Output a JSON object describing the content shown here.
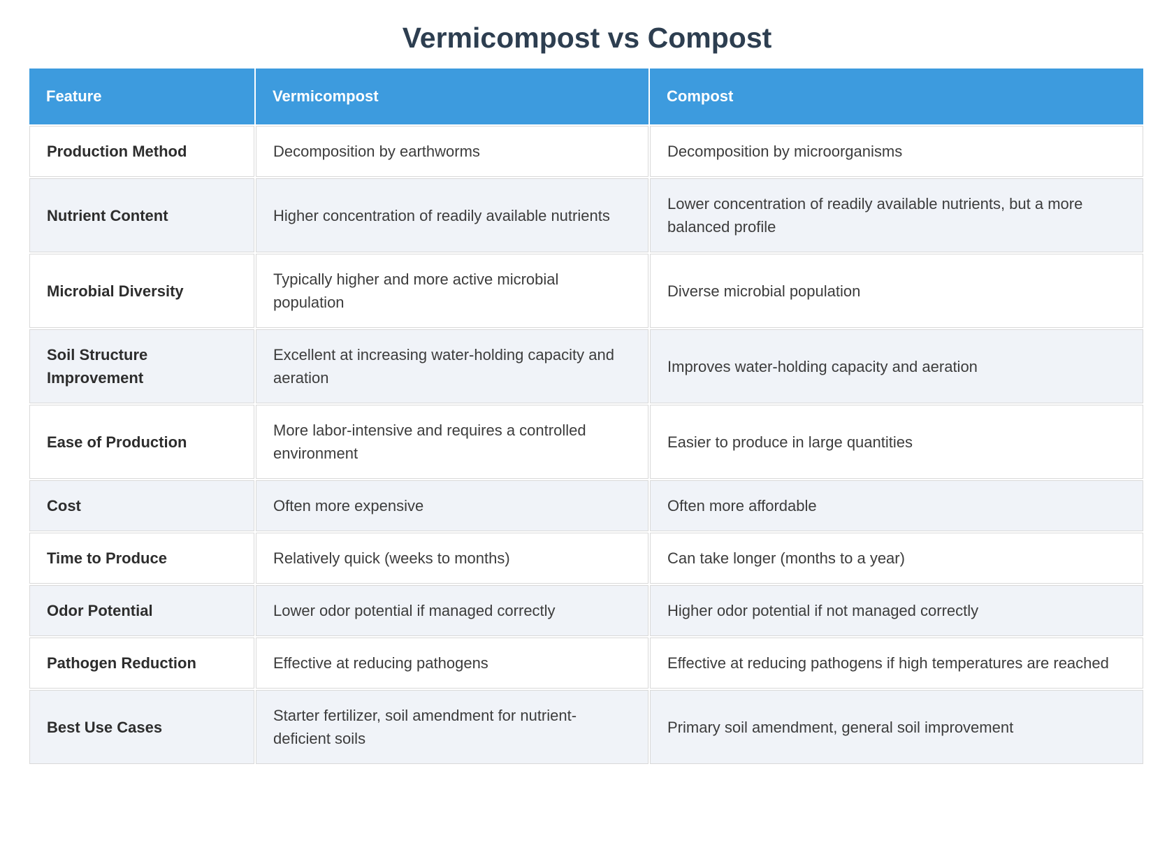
{
  "page": {
    "title": "Vermicompost vs Compost"
  },
  "colors": {
    "header_bg": "#3d9bde",
    "header_text": "#ffffff",
    "title_text": "#2d3e50",
    "row_bg": "#ffffff",
    "row_alt_bg": "#f0f3f8",
    "cell_border": "#d9d9d9",
    "body_text": "#3c3c3c",
    "feature_text": "#2d2d2d"
  },
  "table": {
    "columns": [
      {
        "label": "Feature"
      },
      {
        "label": "Vermicompost"
      },
      {
        "label": "Compost"
      }
    ],
    "rows": [
      {
        "feature": "Production Method",
        "vermicompost": "Decomposition by earthworms",
        "compost": "Decomposition by microorganisms"
      },
      {
        "feature": "Nutrient Content",
        "vermicompost": "Higher concentration of readily available nutrients",
        "compost": "Lower concentration of readily available nutrients, but a more balanced profile"
      },
      {
        "feature": "Microbial Diversity",
        "vermicompost": "Typically higher and more active microbial population",
        "compost": "Diverse microbial population"
      },
      {
        "feature": "Soil Structure Improvement",
        "vermicompost": "Excellent at increasing water-holding capacity and aeration",
        "compost": "Improves water-holding capacity and aeration"
      },
      {
        "feature": "Ease of Production",
        "vermicompost": "More labor-intensive and requires a controlled environment",
        "compost": "Easier to produce in large quantities"
      },
      {
        "feature": "Cost",
        "vermicompost": "Often more expensive",
        "compost": "Often more affordable"
      },
      {
        "feature": "Time to Produce",
        "vermicompost": "Relatively quick (weeks to months)",
        "compost": "Can take longer (months to a year)"
      },
      {
        "feature": "Odor Potential",
        "vermicompost": "Lower odor potential if managed correctly",
        "compost": "Higher odor potential if not managed correctly"
      },
      {
        "feature": "Pathogen Reduction",
        "vermicompost": "Effective at reducing pathogens",
        "compost": "Effective at reducing pathogens if high temperatures are reached"
      },
      {
        "feature": "Best Use Cases",
        "vermicompost": "Starter fertilizer, soil amendment for nutrient-deficient soils",
        "compost": "Primary soil amendment, general soil improvement"
      }
    ]
  },
  "chart_data": {
    "type": "table",
    "title": "Vermicompost vs Compost",
    "columns": [
      "Feature",
      "Vermicompost",
      "Compost"
    ],
    "rows": [
      [
        "Production Method",
        "Decomposition by earthworms",
        "Decomposition by microorganisms"
      ],
      [
        "Nutrient Content",
        "Higher concentration of readily available nutrients",
        "Lower concentration of readily available nutrients, but a more balanced profile"
      ],
      [
        "Microbial Diversity",
        "Typically higher and more active microbial population",
        "Diverse microbial population"
      ],
      [
        "Soil Structure Improvement",
        "Excellent at increasing water-holding capacity and aeration",
        "Improves water-holding capacity and aeration"
      ],
      [
        "Ease of Production",
        "More labor-intensive and requires a controlled environment",
        "Easier to produce in large quantities"
      ],
      [
        "Cost",
        "Often more expensive",
        "Often more affordable"
      ],
      [
        "Time to Produce",
        "Relatively quick (weeks to months)",
        "Can take longer (months to a year)"
      ],
      [
        "Odor Potential",
        "Lower odor potential if managed correctly",
        "Higher odor potential if not managed correctly"
      ],
      [
        "Pathogen Reduction",
        "Effective at reducing pathogens",
        "Effective at reducing pathogens if high temperatures are reached"
      ],
      [
        "Best Use Cases",
        "Starter fertilizer, soil amendment for nutrient-deficient soils",
        "Primary soil amendment, general soil improvement"
      ]
    ],
    "layout": {
      "header_background": "#3d9bde",
      "alternating_row_background": "#f0f3f8",
      "grid": true
    }
  }
}
